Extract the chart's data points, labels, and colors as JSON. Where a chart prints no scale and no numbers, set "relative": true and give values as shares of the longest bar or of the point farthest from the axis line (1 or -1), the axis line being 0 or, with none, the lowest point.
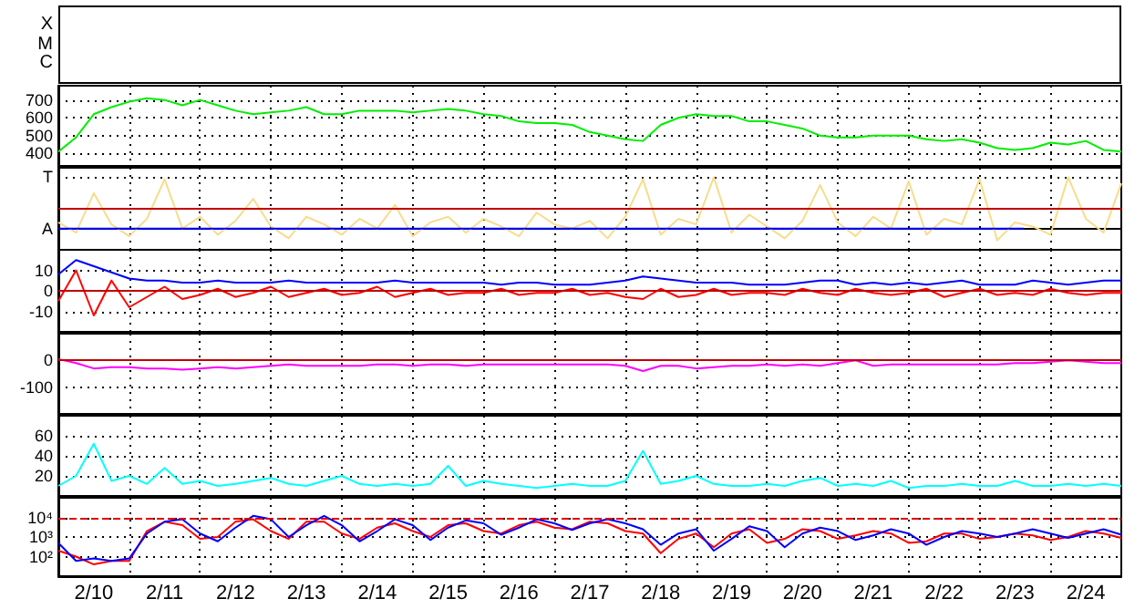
{
  "chart_data": [
    {
      "type": "other",
      "annotations": [
        "X",
        "M",
        "C"
      ]
    },
    {
      "type": "line",
      "ylim": [
        330,
        780
      ],
      "yticks": [
        400,
        500,
        600,
        700
      ],
      "xlim": [
        "--02-10",
        "--02-25"
      ],
      "xticks": [
        {
          "value": "--02-11",
          "label": null
        },
        {
          "value": "--02-12",
          "label": null
        },
        {
          "value": "--02-13",
          "label": null
        },
        {
          "value": "--02-14",
          "label": null
        },
        {
          "value": "--02-15",
          "label": null
        },
        {
          "value": "--02-16",
          "label": null
        },
        {
          "value": "--02-17",
          "label": null
        },
        {
          "value": "--02-18",
          "label": null
        },
        {
          "value": "--02-19",
          "label": null
        },
        {
          "value": "--02-20",
          "label": null
        },
        {
          "value": "--02-21",
          "label": null
        },
        {
          "value": "--02-22",
          "label": null
        },
        {
          "value": "--02-23",
          "label": null
        },
        {
          "value": "--02-24",
          "label": null
        }
      ],
      "grid": true,
      "tick_labels": "y",
      "marker": "none",
      "x": [
        "--02-10T00:00",
        "--02-10T06:00",
        "--02-10T12:00",
        "--02-10T18:00",
        "--02-11T00:00",
        "--02-11T06:00",
        "--02-11T12:00",
        "--02-11T18:00",
        "--02-12T00:00",
        "--02-12T06:00",
        "--02-12T12:00",
        "--02-12T18:00",
        "--02-13T00:00",
        "--02-13T06:00",
        "--02-13T12:00",
        "--02-13T18:00",
        "--02-14T00:00",
        "--02-14T06:00",
        "--02-14T12:00",
        "--02-14T18:00",
        "--02-15T00:00",
        "--02-15T06:00",
        "--02-15T12:00",
        "--02-15T18:00",
        "--02-16T00:00",
        "--02-16T06:00",
        "--02-16T12:00",
        "--02-16T18:00",
        "--02-17T00:00",
        "--02-17T06:00",
        "--02-17T12:00",
        "--02-17T18:00",
        "--02-18T00:00",
        "--02-18T06:00",
        "--02-18T12:00",
        "--02-18T18:00",
        "--02-19T00:00",
        "--02-19T06:00",
        "--02-19T12:00",
        "--02-19T18:00",
        "--02-20T00:00",
        "--02-20T06:00",
        "--02-20T12:00",
        "--02-20T18:00",
        "--02-21T00:00",
        "--02-21T06:00",
        "--02-21T12:00",
        "--02-21T18:00",
        "--02-22T00:00",
        "--02-22T06:00",
        "--02-22T12:00",
        "--02-22T18:00",
        "--02-23T00:00",
        "--02-23T06:00",
        "--02-23T12:00",
        "--02-23T18:00",
        "--02-24T00:00",
        "--02-24T06:00",
        "--02-24T12:00",
        "--02-24T18:00",
        "--02-25T00:00"
      ],
      "series": [
        {
          "color": "#00ee00",
          "values": [
            410,
            490,
            620,
            660,
            690,
            710,
            700,
            670,
            700,
            670,
            640,
            620,
            630,
            640,
            660,
            620,
            620,
            640,
            640,
            640,
            630,
            640,
            650,
            640,
            620,
            610,
            580,
            570,
            570,
            560,
            520,
            500,
            480,
            470,
            560,
            600,
            620,
            610,
            610,
            580,
            580,
            560,
            540,
            500,
            490,
            490,
            500,
            500,
            500,
            480,
            470,
            480,
            460,
            430,
            420,
            430,
            460,
            450,
            470,
            420,
            410
          ]
        }
      ]
    },
    {
      "type": "line",
      "relative": true,
      "xlim": [
        "--02-10",
        "--02-25"
      ],
      "xticks": [
        {
          "value": "--02-11",
          "label": null
        },
        {
          "value": "--02-12",
          "label": null
        },
        {
          "value": "--02-13",
          "label": null
        },
        {
          "value": "--02-14",
          "label": null
        },
        {
          "value": "--02-15",
          "label": null
        },
        {
          "value": "--02-16",
          "label": null
        },
        {
          "value": "--02-17",
          "label": null
        },
        {
          "value": "--02-18",
          "label": null
        },
        {
          "value": "--02-19",
          "label": null
        },
        {
          "value": "--02-20",
          "label": null
        },
        {
          "value": "--02-21",
          "label": null
        },
        {
          "value": "--02-22",
          "label": null
        },
        {
          "value": "--02-23",
          "label": null
        },
        {
          "value": "--02-24",
          "label": null
        }
      ],
      "grid": true,
      "tick_labels": "y",
      "marker": "none",
      "annotations": [
        "T",
        "A"
      ],
      "ref_lines": [
        {
          "axis": "y",
          "value": 0.38,
          "color": "#c00000",
          "line_style": "solid"
        }
      ],
      "x": [
        "--02-10T00:00",
        "--02-10T06:00",
        "--02-10T12:00",
        "--02-10T18:00",
        "--02-11T00:00",
        "--02-11T06:00",
        "--02-11T12:00",
        "--02-11T18:00",
        "--02-12T00:00",
        "--02-12T06:00",
        "--02-12T12:00",
        "--02-12T18:00",
        "--02-13T00:00",
        "--02-13T06:00",
        "--02-13T12:00",
        "--02-13T18:00",
        "--02-14T00:00",
        "--02-14T06:00",
        "--02-14T12:00",
        "--02-14T18:00",
        "--02-15T00:00",
        "--02-15T06:00",
        "--02-15T12:00",
        "--02-15T18:00",
        "--02-16T00:00",
        "--02-16T06:00",
        "--02-16T12:00",
        "--02-16T18:00",
        "--02-17T00:00",
        "--02-17T06:00",
        "--02-17T12:00",
        "--02-17T18:00",
        "--02-18T00:00",
        "--02-18T06:00",
        "--02-18T12:00",
        "--02-18T18:00",
        "--02-19T00:00",
        "--02-19T06:00",
        "--02-19T12:00",
        "--02-19T18:00",
        "--02-20T00:00",
        "--02-20T06:00",
        "--02-20T12:00",
        "--02-20T18:00",
        "--02-21T00:00",
        "--02-21T06:00",
        "--02-21T12:00",
        "--02-21T18:00",
        "--02-22T00:00",
        "--02-22T06:00",
        "--02-22T12:00",
        "--02-22T18:00",
        "--02-23T00:00",
        "--02-23T06:00",
        "--02-23T12:00",
        "--02-23T18:00",
        "--02-24T00:00",
        "--02-24T06:00",
        "--02-24T12:00",
        "--02-24T18:00",
        "--02-25T00:00"
      ],
      "series": [
        {
          "color": "#f8dc8c",
          "values": [
            0.12,
            -0.08,
            0.69,
            0.08,
            -0.15,
            0.19,
            0.96,
            0,
            0.23,
            -0.12,
            0.15,
            0.58,
            0.04,
            -0.19,
            0.23,
            0.08,
            -0.12,
            0.19,
            0,
            0.46,
            -0.15,
            0.12,
            0.23,
            -0.08,
            0.19,
            0.04,
            -0.15,
            0.31,
            0.08,
            0,
            0.15,
            -0.19,
            0.23,
            0.96,
            -0.12,
            0.19,
            0.08,
            1,
            -0.08,
            0.27,
            0.04,
            -0.19,
            0.15,
            0.85,
            0.12,
            -0.15,
            0.23,
            0,
            0.92,
            -0.12,
            0.19,
            0.08,
            0.96,
            -0.23,
            0.12,
            0.04,
            -0.12,
            1,
            0.19,
            -0.08,
            0.88
          ]
        },
        {
          "color": "#0000ff",
          "x": [
            "--02-10T00:00",
            "--02-23T15:00"
          ],
          "values": [
            0,
            0
          ]
        }
      ]
    },
    {
      "type": "line",
      "ylim": [
        -20,
        20
      ],
      "yticks": [
        -10,
        0,
        10
      ],
      "xlim": [
        "--02-10",
        "--02-25"
      ],
      "xticks": [
        {
          "value": "--02-11",
          "label": null
        },
        {
          "value": "--02-12",
          "label": null
        },
        {
          "value": "--02-13",
          "label": null
        },
        {
          "value": "--02-14",
          "label": null
        },
        {
          "value": "--02-15",
          "label": null
        },
        {
          "value": "--02-16",
          "label": null
        },
        {
          "value": "--02-17",
          "label": null
        },
        {
          "value": "--02-18",
          "label": null
        },
        {
          "value": "--02-19",
          "label": null
        },
        {
          "value": "--02-20",
          "label": null
        },
        {
          "value": "--02-21",
          "label": null
        },
        {
          "value": "--02-22",
          "label": null
        },
        {
          "value": "--02-23",
          "label": null
        },
        {
          "value": "--02-24",
          "label": null
        }
      ],
      "grid": true,
      "tick_labels": "y",
      "marker": "none",
      "ref_lines": [
        {
          "axis": "y",
          "value": 0,
          "color": "#c00000",
          "line_style": "solid"
        }
      ],
      "x": [
        "--02-10T00:00",
        "--02-10T06:00",
        "--02-10T12:00",
        "--02-10T18:00",
        "--02-11T00:00",
        "--02-11T06:00",
        "--02-11T12:00",
        "--02-11T18:00",
        "--02-12T00:00",
        "--02-12T06:00",
        "--02-12T12:00",
        "--02-12T18:00",
        "--02-13T00:00",
        "--02-13T06:00",
        "--02-13T12:00",
        "--02-13T18:00",
        "--02-14T00:00",
        "--02-14T06:00",
        "--02-14T12:00",
        "--02-14T18:00",
        "--02-15T00:00",
        "--02-15T06:00",
        "--02-15T12:00",
        "--02-15T18:00",
        "--02-16T00:00",
        "--02-16T06:00",
        "--02-16T12:00",
        "--02-16T18:00",
        "--02-17T00:00",
        "--02-17T06:00",
        "--02-17T12:00",
        "--02-17T18:00",
        "--02-18T00:00",
        "--02-18T06:00",
        "--02-18T12:00",
        "--02-18T18:00",
        "--02-19T00:00",
        "--02-19T06:00",
        "--02-19T12:00",
        "--02-19T18:00",
        "--02-20T00:00",
        "--02-20T06:00",
        "--02-20T12:00",
        "--02-20T18:00",
        "--02-21T00:00",
        "--02-21T06:00",
        "--02-21T12:00",
        "--02-21T18:00",
        "--02-22T00:00",
        "--02-22T06:00",
        "--02-22T12:00",
        "--02-22T18:00",
        "--02-23T00:00",
        "--02-23T06:00",
        "--02-23T12:00",
        "--02-23T18:00",
        "--02-24T00:00",
        "--02-24T06:00",
        "--02-24T12:00",
        "--02-24T18:00",
        "--02-25T00:00"
      ],
      "series": [
        {
          "color": "#0000ff",
          "values": [
            8,
            15,
            12,
            9,
            6,
            5,
            5,
            4,
            4,
            5,
            4,
            4,
            4,
            5,
            4,
            4,
            4,
            4,
            4,
            5,
            4,
            4,
            4,
            4,
            4,
            3,
            4,
            4,
            3,
            3,
            3,
            4,
            5,
            7,
            6,
            5,
            4,
            4,
            4,
            3,
            3,
            3,
            4,
            5,
            5,
            3,
            4,
            3,
            4,
            3,
            4,
            5,
            3,
            3,
            3,
            5,
            4,
            3,
            4,
            5,
            5
          ]
        },
        {
          "color": "#ff0000",
          "values": [
            -5,
            10,
            -12,
            5,
            -8,
            -3,
            2,
            -4,
            -2,
            1,
            -3,
            -1,
            2,
            -3,
            -1,
            1,
            -2,
            -1,
            2,
            -3,
            -1,
            1,
            -2,
            -1,
            -1,
            1,
            -2,
            -1,
            -1,
            1,
            -2,
            -1,
            -3,
            -4,
            1,
            -3,
            -2,
            1,
            -2,
            -1,
            -1,
            -2,
            1,
            -1,
            -2,
            1,
            -1,
            -2,
            -1,
            1,
            -3,
            -1,
            1,
            -2,
            -1,
            -2,
            1,
            -1,
            -2,
            -1,
            -1
          ]
        }
      ]
    },
    {
      "type": "line",
      "ylim": [
        -200,
        100
      ],
      "yticks": [
        -100,
        0
      ],
      "xlim": [
        "--02-10",
        "--02-25"
      ],
      "xticks": [
        {
          "value": "--02-11",
          "label": null
        },
        {
          "value": "--02-12",
          "label": null
        },
        {
          "value": "--02-13",
          "label": null
        },
        {
          "value": "--02-14",
          "label": null
        },
        {
          "value": "--02-15",
          "label": null
        },
        {
          "value": "--02-16",
          "label": null
        },
        {
          "value": "--02-17",
          "label": null
        },
        {
          "value": "--02-18",
          "label": null
        },
        {
          "value": "--02-19",
          "label": null
        },
        {
          "value": "--02-20",
          "label": null
        },
        {
          "value": "--02-21",
          "label": null
        },
        {
          "value": "--02-22",
          "label": null
        },
        {
          "value": "--02-23",
          "label": null
        },
        {
          "value": "--02-24",
          "label": null
        }
      ],
      "grid": true,
      "tick_labels": "y",
      "marker": "none",
      "ref_lines": [
        {
          "axis": "y",
          "value": 0,
          "color": "#c00000",
          "line_style": "solid"
        }
      ],
      "x": [
        "--02-10T00:00",
        "--02-10T06:00",
        "--02-10T12:00",
        "--02-10T18:00",
        "--02-11T00:00",
        "--02-11T06:00",
        "--02-11T12:00",
        "--02-11T18:00",
        "--02-12T00:00",
        "--02-12T06:00",
        "--02-12T12:00",
        "--02-12T18:00",
        "--02-13T00:00",
        "--02-13T06:00",
        "--02-13T12:00",
        "--02-13T18:00",
        "--02-14T00:00",
        "--02-14T06:00",
        "--02-14T12:00",
        "--02-14T18:00",
        "--02-15T00:00",
        "--02-15T06:00",
        "--02-15T12:00",
        "--02-15T18:00",
        "--02-16T00:00",
        "--02-16T06:00",
        "--02-16T12:00",
        "--02-16T18:00",
        "--02-17T00:00",
        "--02-17T06:00",
        "--02-17T12:00",
        "--02-17T18:00",
        "--02-18T00:00",
        "--02-18T06:00",
        "--02-18T12:00",
        "--02-18T18:00",
        "--02-19T00:00",
        "--02-19T06:00",
        "--02-19T12:00",
        "--02-19T18:00",
        "--02-20T00:00",
        "--02-20T06:00",
        "--02-20T12:00",
        "--02-20T18:00",
        "--02-21T00:00",
        "--02-21T06:00",
        "--02-21T12:00",
        "--02-21T18:00",
        "--02-22T00:00",
        "--02-22T06:00",
        "--02-22T12:00",
        "--02-22T18:00",
        "--02-23T00:00",
        "--02-23T06:00",
        "--02-23T12:00",
        "--02-23T18:00",
        "--02-24T00:00",
        "--02-24T06:00",
        "--02-24T12:00",
        "--02-24T18:00",
        "--02-25T00:00"
      ],
      "series": [
        {
          "color": "#ff00ff",
          "values": [
            5,
            -10,
            -30,
            -25,
            -25,
            -30,
            -30,
            -35,
            -30,
            -25,
            -30,
            -25,
            -20,
            -15,
            -20,
            -20,
            -20,
            -20,
            -15,
            -15,
            -20,
            -15,
            -15,
            -20,
            -15,
            -15,
            -15,
            -15,
            -15,
            -15,
            -15,
            -15,
            -20,
            -40,
            -20,
            -20,
            -30,
            -25,
            -20,
            -20,
            -15,
            -20,
            -15,
            -20,
            -10,
            0,
            -20,
            -15,
            -15,
            -15,
            -15,
            -15,
            -15,
            -15,
            -10,
            -10,
            -5,
            0,
            -5,
            -10,
            -10
          ]
        }
      ]
    },
    {
      "type": "line",
      "ylim": [
        0,
        80
      ],
      "yticks": [
        20,
        40,
        60
      ],
      "xlim": [
        "--02-10",
        "--02-25"
      ],
      "xticks": [
        {
          "value": "--02-11",
          "label": null
        },
        {
          "value": "--02-12",
          "label": null
        },
        {
          "value": "--02-13",
          "label": null
        },
        {
          "value": "--02-14",
          "label": null
        },
        {
          "value": "--02-15",
          "label": null
        },
        {
          "value": "--02-16",
          "label": null
        },
        {
          "value": "--02-17",
          "label": null
        },
        {
          "value": "--02-18",
          "label": null
        },
        {
          "value": "--02-19",
          "label": null
        },
        {
          "value": "--02-20",
          "label": null
        },
        {
          "value": "--02-21",
          "label": null
        },
        {
          "value": "--02-22",
          "label": null
        },
        {
          "value": "--02-23",
          "label": null
        },
        {
          "value": "--02-24",
          "label": null
        }
      ],
      "grid": true,
      "tick_labels": "y",
      "marker": "none",
      "x": [
        "--02-10T00:00",
        "--02-10T06:00",
        "--02-10T12:00",
        "--02-10T18:00",
        "--02-11T00:00",
        "--02-11T06:00",
        "--02-11T12:00",
        "--02-11T18:00",
        "--02-12T00:00",
        "--02-12T06:00",
        "--02-12T12:00",
        "--02-12T18:00",
        "--02-13T00:00",
        "--02-13T06:00",
        "--02-13T12:00",
        "--02-13T18:00",
        "--02-14T00:00",
        "--02-14T06:00",
        "--02-14T12:00",
        "--02-14T18:00",
        "--02-15T00:00",
        "--02-15T06:00",
        "--02-15T12:00",
        "--02-15T18:00",
        "--02-16T00:00",
        "--02-16T06:00",
        "--02-16T12:00",
        "--02-16T18:00",
        "--02-17T00:00",
        "--02-17T06:00",
        "--02-17T12:00",
        "--02-17T18:00",
        "--02-18T00:00",
        "--02-18T06:00",
        "--02-18T12:00",
        "--02-18T18:00",
        "--02-19T00:00",
        "--02-19T06:00",
        "--02-19T12:00",
        "--02-19T18:00",
        "--02-20T00:00",
        "--02-20T06:00",
        "--02-20T12:00",
        "--02-20T18:00",
        "--02-21T00:00",
        "--02-21T06:00",
        "--02-21T12:00",
        "--02-21T18:00",
        "--02-22T00:00",
        "--02-22T06:00",
        "--02-22T12:00",
        "--02-22T18:00",
        "--02-23T00:00",
        "--02-23T06:00",
        "--02-23T12:00",
        "--02-23T18:00",
        "--02-24T00:00",
        "--02-24T06:00",
        "--02-24T12:00",
        "--02-24T18:00",
        "--02-25T00:00"
      ],
      "series": [
        {
          "color": "#00ffff",
          "values": [
            10,
            20,
            52,
            15,
            20,
            12,
            28,
            12,
            15,
            10,
            12,
            15,
            18,
            12,
            10,
            15,
            20,
            12,
            10,
            12,
            10,
            12,
            30,
            10,
            15,
            12,
            10,
            8,
            10,
            12,
            10,
            10,
            15,
            45,
            12,
            15,
            20,
            12,
            10,
            10,
            12,
            10,
            15,
            18,
            10,
            12,
            10,
            15,
            8,
            10,
            10,
            12,
            10,
            10,
            15,
            10,
            10,
            12,
            10,
            12,
            10
          ]
        }
      ]
    },
    {
      "type": "line",
      "log": "y",
      "ylim": [
        10,
        100000
      ],
      "yticks": [
        {
          "value": 100,
          "label": "10²"
        },
        {
          "value": 1000,
          "label": "10³"
        },
        {
          "value": 10000,
          "label": "10⁴"
        }
      ],
      "xlim": [
        "--02-10",
        "--02-25"
      ],
      "xticks": [
        {
          "value": "--02-10T12:00",
          "label": "2/10"
        },
        {
          "value": "--02-11",
          "label": null
        },
        {
          "value": "--02-11T12:00",
          "label": "2/11"
        },
        {
          "value": "--02-12",
          "label": null
        },
        {
          "value": "--02-12T12:00",
          "label": "2/12"
        },
        {
          "value": "--02-13",
          "label": null
        },
        {
          "value": "--02-13T12:00",
          "label": "2/13"
        },
        {
          "value": "--02-14",
          "label": null
        },
        {
          "value": "--02-14T12:00",
          "label": "2/14"
        },
        {
          "value": "--02-15",
          "label": null
        },
        {
          "value": "--02-15T12:00",
          "label": "2/15"
        },
        {
          "value": "--02-16",
          "label": null
        },
        {
          "value": "--02-16T12:00",
          "label": "2/16"
        },
        {
          "value": "--02-17",
          "label": null
        },
        {
          "value": "--02-17T12:00",
          "label": "2/17"
        },
        {
          "value": "--02-18",
          "label": null
        },
        {
          "value": "--02-18T12:00",
          "label": "2/18"
        },
        {
          "value": "--02-19",
          "label": null
        },
        {
          "value": "--02-19T12:00",
          "label": "2/19"
        },
        {
          "value": "--02-20",
          "label": null
        },
        {
          "value": "--02-20T12:00",
          "label": "2/20"
        },
        {
          "value": "--02-21",
          "label": null
        },
        {
          "value": "--02-21T12:00",
          "label": "2/21"
        },
        {
          "value": "--02-22",
          "label": null
        },
        {
          "value": "--02-22T12:00",
          "label": "2/22"
        },
        {
          "value": "--02-23",
          "label": null
        },
        {
          "value": "--02-23T12:00",
          "label": "2/23"
        },
        {
          "value": "--02-24",
          "label": null
        },
        {
          "value": "--02-24T12:00",
          "label": "2/24"
        }
      ],
      "grid": true,
      "marker": "none",
      "ref_lines": [
        {
          "axis": "y",
          "value": 10000,
          "color": "#e00000",
          "line_style": "dashed"
        }
      ],
      "x": [
        "--02-10T00:00",
        "--02-10T06:00",
        "--02-10T12:00",
        "--02-10T18:00",
        "--02-11T00:00",
        "--02-11T06:00",
        "--02-11T12:00",
        "--02-11T18:00",
        "--02-12T00:00",
        "--02-12T06:00",
        "--02-12T12:00",
        "--02-12T18:00",
        "--02-13T00:00",
        "--02-13T06:00",
        "--02-13T12:00",
        "--02-13T18:00",
        "--02-14T00:00",
        "--02-14T06:00",
        "--02-14T12:00",
        "--02-14T18:00",
        "--02-15T00:00",
        "--02-15T06:00",
        "--02-15T12:00",
        "--02-15T18:00",
        "--02-16T00:00",
        "--02-16T06:00",
        "--02-16T12:00",
        "--02-16T18:00",
        "--02-17T00:00",
        "--02-17T06:00",
        "--02-17T12:00",
        "--02-17T18:00",
        "--02-18T00:00",
        "--02-18T06:00",
        "--02-18T12:00",
        "--02-18T18:00",
        "--02-19T00:00",
        "--02-19T06:00",
        "--02-19T12:00",
        "--02-19T18:00",
        "--02-20T00:00",
        "--02-20T06:00",
        "--02-20T12:00",
        "--02-20T18:00",
        "--02-21T00:00",
        "--02-21T06:00",
        "--02-21T12:00",
        "--02-21T18:00",
        "--02-22T00:00",
        "--02-22T06:00",
        "--02-22T12:00",
        "--02-22T18:00",
        "--02-23T00:00",
        "--02-23T06:00",
        "--02-23T12:00",
        "--02-23T18:00",
        "--02-24T00:00",
        "--02-24T06:00",
        "--02-24T12:00",
        "--02-24T18:00",
        "--02-25T00:00"
      ],
      "series": [
        {
          "color": "#ff0000",
          "values": [
            200,
            100,
            40,
            60,
            60,
            2000,
            6000,
            4000,
            800,
            1000,
            6000,
            8000,
            2000,
            800,
            6000,
            6000,
            1500,
            800,
            3000,
            5000,
            2000,
            1000,
            4000,
            5000,
            2000,
            1500,
            4000,
            6000,
            3000,
            2500,
            6000,
            5000,
            2000,
            1500,
            150,
            800,
            1500,
            300,
            1500,
            2500,
            500,
            800,
            2500,
            2000,
            800,
            1200,
            2000,
            1500,
            500,
            600,
            1500,
            1500,
            800,
            1000,
            1500,
            1200,
            700,
            1000,
            2000,
            1500,
            900
          ]
        },
        {
          "color": "#0000ff",
          "values": [
            500,
            60,
            80,
            60,
            80,
            1500,
            6000,
            8000,
            1500,
            600,
            3000,
            12000,
            8000,
            1000,
            4000,
            12000,
            4000,
            600,
            2000,
            8000,
            4000,
            700,
            3000,
            7000,
            5000,
            1300,
            3000,
            8000,
            5000,
            2300,
            5000,
            8000,
            5000,
            2500,
            400,
            1500,
            2500,
            200,
            800,
            3500,
            2000,
            300,
            1500,
            3000,
            2000,
            700,
            1200,
            2500,
            1500,
            400,
            1000,
            2000,
            1500,
            1000,
            1500,
            2500,
            1500,
            900,
            1500,
            2500,
            1300
          ]
        }
      ]
    }
  ]
}
